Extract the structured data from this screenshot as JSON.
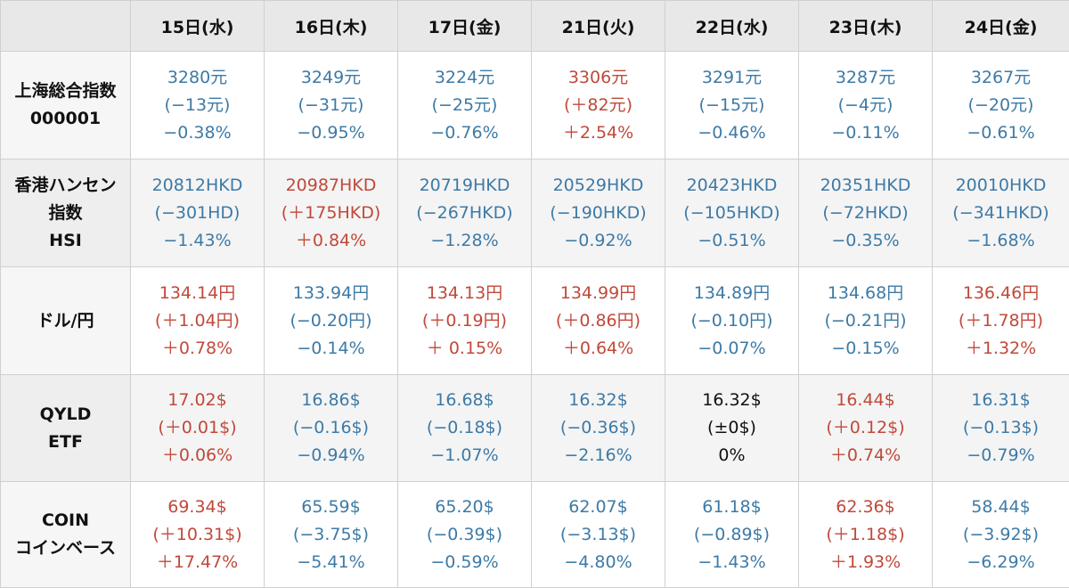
{
  "colors": {
    "down": "#3d7aa6",
    "up": "#c0493a",
    "flat": "#111111"
  },
  "dates": [
    "15日(水)",
    "16日(木)",
    "17日(金)",
    "21日(火)",
    "22日(水)",
    "23日(木)",
    "24日(金)"
  ],
  "rows": [
    {
      "label": [
        "上海総合指数",
        "000001"
      ],
      "cells": [
        {
          "lines": [
            "3280元",
            "(−13元)",
            "−0.38%"
          ],
          "dir": "down"
        },
        {
          "lines": [
            "3249元",
            "(−31元)",
            "−0.95%"
          ],
          "dir": "down"
        },
        {
          "lines": [
            "3224元",
            "(−25元)",
            "−0.76%"
          ],
          "dir": "down"
        },
        {
          "lines": [
            "3306元",
            "(＋82元)",
            "＋2.54%"
          ],
          "dir": "up"
        },
        {
          "lines": [
            "3291元",
            "(−15元)",
            "−0.46%"
          ],
          "dir": "down"
        },
        {
          "lines": [
            "3287元",
            "(−4元)",
            "−0.11%"
          ],
          "dir": "down"
        },
        {
          "lines": [
            "3267元",
            "(−20元)",
            "−0.61%"
          ],
          "dir": "down"
        }
      ]
    },
    {
      "label": [
        "香港ハンセン",
        "指数",
        "HSI"
      ],
      "cells": [
        {
          "lines": [
            "20812HKD",
            "(−301HD)",
            "−1.43%"
          ],
          "dir": "down"
        },
        {
          "lines": [
            "20987HKD",
            "(＋175HKD)",
            "＋0.84%"
          ],
          "dir": "up"
        },
        {
          "lines": [
            "20719HKD",
            "(−267HKD)",
            "−1.28%"
          ],
          "dir": "down"
        },
        {
          "lines": [
            "20529HKD",
            "(−190HKD)",
            "−0.92%"
          ],
          "dir": "down"
        },
        {
          "lines": [
            "20423HKD",
            "(−105HKD)",
            "−0.51%"
          ],
          "dir": "down"
        },
        {
          "lines": [
            "20351HKD",
            "(−72HKD)",
            "−0.35%"
          ],
          "dir": "down"
        },
        {
          "lines": [
            "20010HKD",
            "(−341HKD)",
            "−1.68%"
          ],
          "dir": "down"
        }
      ]
    },
    {
      "label": [
        "ドル/円"
      ],
      "cells": [
        {
          "lines": [
            "134.14円",
            "(＋1.04円)",
            "＋0.78%"
          ],
          "dir": "up"
        },
        {
          "lines": [
            "133.94円",
            "(−0.20円)",
            "−0.14%"
          ],
          "dir": "down"
        },
        {
          "lines": [
            "134.13円",
            "(＋0.19円)",
            "＋ 0.15%"
          ],
          "dir": "up"
        },
        {
          "lines": [
            "134.99円",
            "(＋0.86円)",
            "＋0.64%"
          ],
          "dir": "up"
        },
        {
          "lines": [
            "134.89円",
            "(−0.10円)",
            "−0.07%"
          ],
          "dir": "down"
        },
        {
          "lines": [
            "134.68円",
            "(−0.21円)",
            "−0.15%"
          ],
          "dir": "down"
        },
        {
          "lines": [
            "136.46円",
            "(＋1.78円)",
            "＋1.32%"
          ],
          "dir": "up"
        }
      ]
    },
    {
      "label": [
        "QYLD",
        "ETF"
      ],
      "cells": [
        {
          "lines": [
            "17.02$",
            "(＋0.01$)",
            "＋0.06%"
          ],
          "dir": "up"
        },
        {
          "lines": [
            "16.86$",
            "(−0.16$)",
            "−0.94%"
          ],
          "dir": "down"
        },
        {
          "lines": [
            "16.68$",
            "(−0.18$)",
            "−1.07%"
          ],
          "dir": "down"
        },
        {
          "lines": [
            "16.32$",
            "(−0.36$)",
            "−2.16%"
          ],
          "dir": "down"
        },
        {
          "lines": [
            "16.32$",
            "(±0$)",
            "0%"
          ],
          "dir": "flat"
        },
        {
          "lines": [
            "16.44$",
            "(＋0.12$)",
            "＋0.74%"
          ],
          "dir": "up"
        },
        {
          "lines": [
            "16.31$",
            "(−0.13$)",
            "−0.79%"
          ],
          "dir": "down"
        }
      ]
    },
    {
      "label": [
        "COIN",
        "コインベース"
      ],
      "cells": [
        {
          "lines": [
            "69.34$",
            "(＋10.31$)",
            "＋17.47%"
          ],
          "dir": "up"
        },
        {
          "lines": [
            "65.59$",
            "(−3.75$)",
            "−5.41%"
          ],
          "dir": "down"
        },
        {
          "lines": [
            "65.20$",
            "(−0.39$)",
            "−0.59%"
          ],
          "dir": "down"
        },
        {
          "lines": [
            "62.07$",
            "(−3.13$)",
            "−4.80%"
          ],
          "dir": "down"
        },
        {
          "lines": [
            "61.18$",
            "(−0.89$)",
            "−1.43%"
          ],
          "dir": "down"
        },
        {
          "lines": [
            "62.36$",
            "(＋1.18$)",
            "＋1.93%"
          ],
          "dir": "up"
        },
        {
          "lines": [
            "58.44$",
            "(−3.92$)",
            "−6.29%"
          ],
          "dir": "down"
        }
      ]
    }
  ]
}
